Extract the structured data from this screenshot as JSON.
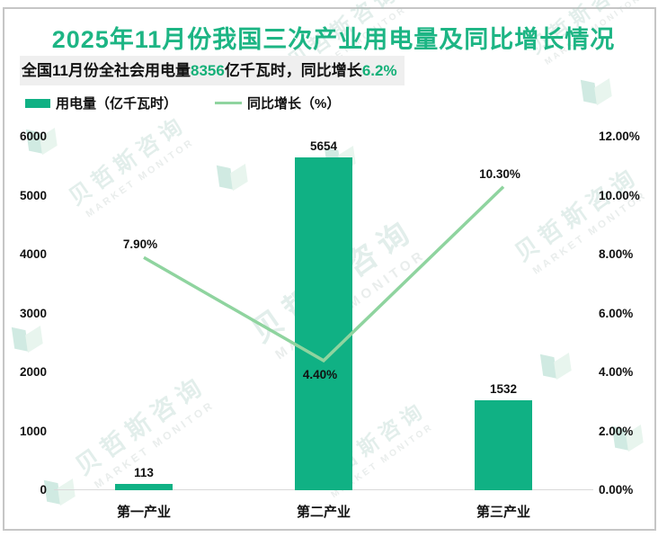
{
  "title": "2025年11月份我国三次产业用电量及同比增长情况",
  "subtitle": {
    "prefix": "全国11月份全社会用电量",
    "value_highlight": "8356",
    "middle": "亿千瓦时，同比增长",
    "growth_highlight": "6.2%"
  },
  "legend": [
    {
      "swatch": "bar",
      "label": "用电量（亿千瓦时）"
    },
    {
      "swatch": "line",
      "label": "同比增长（%）"
    }
  ],
  "watermark": {
    "cn": "贝哲斯咨询",
    "en": "MARKET MONITOR"
  },
  "colors": {
    "accent": "#10b184",
    "line": "#8fd49f",
    "title": "#1db584",
    "highlight": "#15b078",
    "subtitle_bg": "#efefef",
    "axis_line": "#d9d9d9",
    "border": "#c6c6c6"
  },
  "chart_data": {
    "type": "bar",
    "subtype": "bar-line-combo",
    "title": "2025年11月份我国三次产业用电量及同比增长情况",
    "categories": [
      "第一产业",
      "第二产业",
      "第三产业"
    ],
    "series": [
      {
        "name": "用电量（亿千瓦时）",
        "type": "bar",
        "axis": "left",
        "values": [
          113,
          5654,
          1532
        ],
        "labels": [
          "113",
          "5654",
          "1532"
        ]
      },
      {
        "name": "同比增长（%）",
        "type": "line",
        "axis": "right",
        "values": [
          7.9,
          4.4,
          10.3
        ],
        "labels": [
          "7.90%",
          "4.40%",
          "10.30%"
        ]
      }
    ],
    "left_axis": {
      "min": 0,
      "max": 6000,
      "step": 1000,
      "ticks": [
        "0",
        "1000",
        "2000",
        "3000",
        "4000",
        "5000",
        "6000"
      ]
    },
    "right_axis": {
      "min": 0,
      "max": 12,
      "step": 2,
      "ticks": [
        "0.00%",
        "2.00%",
        "4.00%",
        "6.00%",
        "8.00%",
        "10.00%",
        "12.00%"
      ]
    },
    "grid": false,
    "legend_position": "top-left"
  }
}
